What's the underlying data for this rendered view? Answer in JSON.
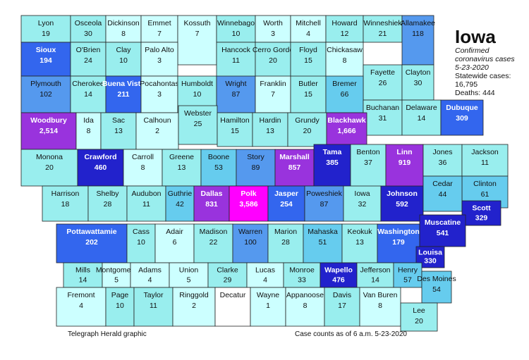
{
  "title": "Iowa",
  "subtitle_line1": "Confirmed",
  "subtitle_line2": "coronavirus cases",
  "date": "5-23-2020",
  "statewide": "Statewide cases: 16,795",
  "deaths": "Deaths: 444",
  "credit": "Telegraph Herald graphic",
  "asof": "Case counts as of 6 a.m. 5-23-2020",
  "colors": {
    "lightest": "#ccffff",
    "light": "#99eeee",
    "medium": "#66ccee",
    "mediumdark": "#5599ee",
    "dark": "#3366ee",
    "darkest": "#2222cc",
    "purple": "#9933dd",
    "magenta": "#ff00ff",
    "none": "#ffffff"
  },
  "counties": [
    {
      "name": "Lyon",
      "value": "19",
      "shade": "light"
    },
    {
      "name": "Osceola",
      "value": "30",
      "shade": "light"
    },
    {
      "name": "Dickinson",
      "value": "8",
      "shade": "lightest"
    },
    {
      "name": "Emmet",
      "value": "7",
      "shade": "lightest"
    },
    {
      "name": "Kossuth",
      "value": "7",
      "shade": "lightest"
    },
    {
      "name": "Winnebago",
      "value": "10",
      "shade": "light"
    },
    {
      "name": "Worth",
      "value": "3",
      "shade": "lightest"
    },
    {
      "name": "Mitchell",
      "value": "4",
      "shade": "lightest"
    },
    {
      "name": "Howard",
      "value": "12",
      "shade": "light"
    },
    {
      "name": "Winneshiek",
      "value": "21",
      "shade": "light"
    },
    {
      "name": "Allamakee",
      "value": "118",
      "shade": "mediumdark"
    },
    {
      "name": "Sioux",
      "value": "194",
      "shade": "dark"
    },
    {
      "name": "O'Brien",
      "value": "24",
      "shade": "light"
    },
    {
      "name": "Clay",
      "value": "10",
      "shade": "light"
    },
    {
      "name": "Palo Alto",
      "value": "3",
      "shade": "lightest"
    },
    {
      "name": "Hancock",
      "value": "11",
      "shade": "light"
    },
    {
      "name": "Cerro Gordo",
      "value": "20",
      "shade": "light"
    },
    {
      "name": "Floyd",
      "value": "15",
      "shade": "light"
    },
    {
      "name": "Chickasaw",
      "value": "8",
      "shade": "lightest"
    },
    {
      "name": "Fayette",
      "value": "26",
      "shade": "light"
    },
    {
      "name": "Clayton",
      "value": "30",
      "shade": "light"
    },
    {
      "name": "Plymouth",
      "value": "102",
      "shade": "mediumdark"
    },
    {
      "name": "Cherokee",
      "value": "14",
      "shade": "light"
    },
    {
      "name": "Buena Vista",
      "value": "211",
      "shade": "dark"
    },
    {
      "name": "Pocahontas",
      "value": "3",
      "shade": "lightest"
    },
    {
      "name": "Humboldt",
      "value": "10",
      "shade": "light"
    },
    {
      "name": "Wright",
      "value": "87",
      "shade": "mediumdark"
    },
    {
      "name": "Franklin",
      "value": "7",
      "shade": "lightest"
    },
    {
      "name": "Butler",
      "value": "15",
      "shade": "light"
    },
    {
      "name": "Bremer",
      "value": "66",
      "shade": "medium"
    },
    {
      "name": "Buchanan",
      "value": "31",
      "shade": "light"
    },
    {
      "name": "Delaware",
      "value": "14",
      "shade": "light"
    },
    {
      "name": "Dubuque",
      "value": "309",
      "shade": "dark"
    },
    {
      "name": "Woodbury",
      "value": "2,514",
      "shade": "purple"
    },
    {
      "name": "Ida",
      "value": "8",
      "shade": "lightest"
    },
    {
      "name": "Sac",
      "value": "13",
      "shade": "light"
    },
    {
      "name": "Calhoun",
      "value": "2",
      "shade": "lightest"
    },
    {
      "name": "Webster",
      "value": "25",
      "shade": "light"
    },
    {
      "name": "Hamilton",
      "value": "15",
      "shade": "light"
    },
    {
      "name": "Hardin",
      "value": "13",
      "shade": "light"
    },
    {
      "name": "Grundy",
      "value": "20",
      "shade": "light"
    },
    {
      "name": "Blackhawk",
      "value": "1,666",
      "shade": "purple"
    },
    {
      "name": "Monona",
      "value": "20",
      "shade": "light"
    },
    {
      "name": "Crawford",
      "value": "460",
      "shade": "darkest"
    },
    {
      "name": "Carroll",
      "value": "8",
      "shade": "lightest"
    },
    {
      "name": "Greene",
      "value": "13",
      "shade": "light"
    },
    {
      "name": "Boone",
      "value": "53",
      "shade": "medium"
    },
    {
      "name": "Story",
      "value": "89",
      "shade": "mediumdark"
    },
    {
      "name": "Marshall",
      "value": "857",
      "shade": "purple"
    },
    {
      "name": "Tama",
      "value": "385",
      "shade": "darkest"
    },
    {
      "name": "Benton",
      "value": "37",
      "shade": "light"
    },
    {
      "name": "Linn",
      "value": "919",
      "shade": "purple"
    },
    {
      "name": "Jones",
      "value": "36",
      "shade": "light"
    },
    {
      "name": "Jackson",
      "value": "11",
      "shade": "light"
    },
    {
      "name": "Clinton",
      "value": "61",
      "shade": "medium"
    },
    {
      "name": "Harrison",
      "value": "18",
      "shade": "light"
    },
    {
      "name": "Shelby",
      "value": "28",
      "shade": "light"
    },
    {
      "name": "Audubon",
      "value": "11",
      "shade": "light"
    },
    {
      "name": "Guthrie",
      "value": "42",
      "shade": "medium"
    },
    {
      "name": "Dallas",
      "value": "831",
      "shade": "purple"
    },
    {
      "name": "Polk",
      "value": "3,586",
      "shade": "magenta"
    },
    {
      "name": "Jasper",
      "value": "254",
      "shade": "dark"
    },
    {
      "name": "Poweshiek",
      "value": "87",
      "shade": "mediumdark"
    },
    {
      "name": "Iowa",
      "value": "32",
      "shade": "light"
    },
    {
      "name": "Johnson",
      "value": "592",
      "shade": "darkest"
    },
    {
      "name": "Cedar",
      "value": "44",
      "shade": "medium"
    },
    {
      "name": "Scott",
      "value": "329",
      "shade": "darkest"
    },
    {
      "name": "Pottawattamie",
      "value": "202",
      "shade": "dark"
    },
    {
      "name": "Cass",
      "value": "10",
      "shade": "light"
    },
    {
      "name": "Adair",
      "value": "6",
      "shade": "lightest"
    },
    {
      "name": "Madison",
      "value": "22",
      "shade": "light"
    },
    {
      "name": "Warren",
      "value": "100",
      "shade": "mediumdark"
    },
    {
      "name": "Marion",
      "value": "28",
      "shade": "light"
    },
    {
      "name": "Mahaska",
      "value": "51",
      "shade": "medium"
    },
    {
      "name": "Keokuk",
      "value": "13",
      "shade": "light"
    },
    {
      "name": "Washington",
      "value": "179",
      "shade": "dark"
    },
    {
      "name": "Muscatine",
      "value": "541",
      "shade": "darkest"
    },
    {
      "name": "Louisa",
      "value": "330",
      "shade": "darkest"
    },
    {
      "name": "Mills",
      "value": "14",
      "shade": "light"
    },
    {
      "name": "Montgomery",
      "value": "5",
      "shade": "lightest"
    },
    {
      "name": "Adams",
      "value": "4",
      "shade": "lightest"
    },
    {
      "name": "Union",
      "value": "5",
      "shade": "lightest"
    },
    {
      "name": "Clarke",
      "value": "29",
      "shade": "light"
    },
    {
      "name": "Lucas",
      "value": "4",
      "shade": "lightest"
    },
    {
      "name": "Monroe",
      "value": "33",
      "shade": "light"
    },
    {
      "name": "Wapello",
      "value": "476",
      "shade": "darkest"
    },
    {
      "name": "Jefferson",
      "value": "14",
      "shade": "light"
    },
    {
      "name": "Henry",
      "value": "57",
      "shade": "medium"
    },
    {
      "name": "Des Moines",
      "value": "54",
      "shade": "medium"
    },
    {
      "name": "Fremont",
      "value": "4",
      "shade": "lightest"
    },
    {
      "name": "Page",
      "value": "10",
      "shade": "light"
    },
    {
      "name": "Taylor",
      "value": "11",
      "shade": "light"
    },
    {
      "name": "Ringgold",
      "value": "2",
      "shade": "lightest"
    },
    {
      "name": "Decatur",
      "value": "",
      "shade": "none"
    },
    {
      "name": "Wayne",
      "value": "1",
      "shade": "lightest"
    },
    {
      "name": "Appanoose",
      "value": "8",
      "shade": "lightest"
    },
    {
      "name": "Davis",
      "value": "17",
      "shade": "light"
    },
    {
      "name": "Van Buren",
      "value": "8",
      "shade": "lightest"
    },
    {
      "name": "Lee",
      "value": "20",
      "shade": "light"
    }
  ]
}
